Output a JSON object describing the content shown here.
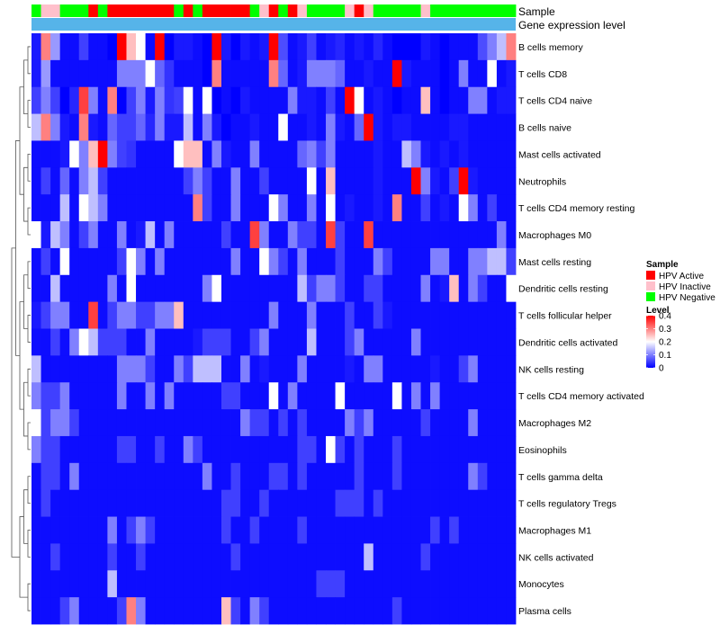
{
  "chart_data": {
    "type": "heatmap",
    "annotation_track_labels": [
      "Sample",
      "Gene expression level"
    ],
    "rows": [
      "B cells memory",
      "T cells CD8",
      "T cells CD4 naive",
      "B cells naive",
      "Mast cells activated",
      "Neutrophils",
      "T cells CD4 memory resting",
      "Macrophages M0",
      "Mast cells resting",
      "Dendritic cells resting",
      "T cells follicular helper",
      "Dendritic cells activated",
      "NK cells resting",
      "T cells CD4 memory activated",
      "Macrophages M2",
      "Eosinophils",
      "T cells gamma delta",
      "T cells regulatory  Tregs",
      "Macrophages M1",
      "NK cells activated",
      "Monocytes",
      "Plasma cells"
    ],
    "sample_groups": [
      "Negative",
      "Inactive",
      "Inactive",
      "Negative",
      "Negative",
      "Negative",
      "Active",
      "Negative",
      "Active",
      "Active",
      "Active",
      "Active",
      "Active",
      "Active",
      "Active",
      "Negative",
      "Active",
      "Negative",
      "Active",
      "Active",
      "Active",
      "Active",
      "Active",
      "Negative",
      "Inactive",
      "Active",
      "Negative",
      "Active",
      "Inactive",
      "Negative",
      "Negative",
      "Negative",
      "Negative",
      "Inactive",
      "Active",
      "Inactive",
      "Negative",
      "Negative",
      "Negative",
      "Negative",
      "Negative",
      "Inactive",
      "Negative",
      "Negative",
      "Negative",
      "Negative",
      "Negative",
      "Negative",
      "Negative",
      "Negative",
      "Negative"
    ],
    "values": [
      [
        0.02,
        0.3,
        0.12,
        0.01,
        0.01,
        0.05,
        0.01,
        0.01,
        0.0,
        0.4,
        0.25,
        0.2,
        0.01,
        0.4,
        0.0,
        0.02,
        0.02,
        0.01,
        0.0,
        0.4,
        0.02,
        0.0,
        0.02,
        0.01,
        0.02,
        0.4,
        0.06,
        0.01,
        0.02,
        0.05,
        0.01,
        0.02,
        0.03,
        0.01,
        0.02,
        0.01,
        0.03,
        0.01,
        0.0,
        0.0,
        0.0,
        0.02,
        0.01,
        0.0,
        0.01,
        0.01,
        0.01,
        0.06,
        0.1,
        0.15,
        0.3
      ],
      [
        0.02,
        0.12,
        0.01,
        0.01,
        0.01,
        0.01,
        0.01,
        0.01,
        0.01,
        0.1,
        0.1,
        0.1,
        0.2,
        0.08,
        0.04,
        0.01,
        0.01,
        0.01,
        0.0,
        0.3,
        0.01,
        0.01,
        0.01,
        0.01,
        0.01,
        0.3,
        0.08,
        0.01,
        0.02,
        0.1,
        0.1,
        0.1,
        0.08,
        0.01,
        0.01,
        0.02,
        0.01,
        0.01,
        0.4,
        0.02,
        0.01,
        0.01,
        0.01,
        0.0,
        0.01,
        0.1,
        0.01,
        0.01,
        0.2,
        0.01,
        0.02
      ],
      [
        0.05,
        0.1,
        0.05,
        0.0,
        0.03,
        0.35,
        0.1,
        0.01,
        0.3,
        0.0,
        0.05,
        0.1,
        0.02,
        0.1,
        0.04,
        0.05,
        0.2,
        0.01,
        0.2,
        0.0,
        0.01,
        0.0,
        0.02,
        0.01,
        0.01,
        0.01,
        0.01,
        0.1,
        0.02,
        0.02,
        0.01,
        0.05,
        0.01,
        0.4,
        0.2,
        0.01,
        0.02,
        0.01,
        0.0,
        0.01,
        0.01,
        0.25,
        0.01,
        0.0,
        0.01,
        0.01,
        0.1,
        0.1,
        0.01,
        0.02,
        0.02
      ],
      [
        0.15,
        0.3,
        0.1,
        0.02,
        0.01,
        0.3,
        0.02,
        0.01,
        0.08,
        0.05,
        0.05,
        0.08,
        0.03,
        0.1,
        0.02,
        0.02,
        0.15,
        0.01,
        0.1,
        0.02,
        0.0,
        0.01,
        0.01,
        0.02,
        0.01,
        0.01,
        0.2,
        0.01,
        0.01,
        0.02,
        0.01,
        0.1,
        0.02,
        0.01,
        0.08,
        0.4,
        0.02,
        0.01,
        0.02,
        0.02,
        0.01,
        0.01,
        0.01,
        0.01,
        0.02,
        0.02,
        0.01,
        0.01,
        0.01,
        0.01,
        0.01
      ],
      [
        0.01,
        0.01,
        0.01,
        0.02,
        0.2,
        0.1,
        0.25,
        0.4,
        0.1,
        0.05,
        0.04,
        0.01,
        0.01,
        0.01,
        0.01,
        0.2,
        0.25,
        0.25,
        0.01,
        0.1,
        0.02,
        0.01,
        0.01,
        0.1,
        0.01,
        0.01,
        0.01,
        0.01,
        0.08,
        0.1,
        0.05,
        0.1,
        0.01,
        0.01,
        0.01,
        0.01,
        0.02,
        0.01,
        0.01,
        0.15,
        0.1,
        0.02,
        0.01,
        0.02,
        0.01,
        0.02,
        0.01,
        0.01,
        0.01,
        0.01,
        0.01
      ],
      [
        0.01,
        0.05,
        0.01,
        0.08,
        0.01,
        0.1,
        0.15,
        0.05,
        0.01,
        0.01,
        0.01,
        0.01,
        0.01,
        0.01,
        0.01,
        0.01,
        0.05,
        0.1,
        0.05,
        0.01,
        0.01,
        0.1,
        0.01,
        0.01,
        0.05,
        0.01,
        0.01,
        0.01,
        0.01,
        0.2,
        0.01,
        0.25,
        0.01,
        0.01,
        0.01,
        0.01,
        0.02,
        0.01,
        0.01,
        0.01,
        0.4,
        0.1,
        0.02,
        0.01,
        0.05,
        0.4,
        0.02,
        0.01,
        0.01,
        0.01,
        0.01
      ],
      [
        0.01,
        0.01,
        0.01,
        0.15,
        0.01,
        0.2,
        0.15,
        0.1,
        0.01,
        0.01,
        0.01,
        0.01,
        0.01,
        0.01,
        0.01,
        0.01,
        0.01,
        0.3,
        0.05,
        0.01,
        0.01,
        0.1,
        0.01,
        0.01,
        0.01,
        0.2,
        0.1,
        0.01,
        0.01,
        0.1,
        0.01,
        0.2,
        0.01,
        0.02,
        0.01,
        0.01,
        0.02,
        0.01,
        0.3,
        0.01,
        0.01,
        0.05,
        0.01,
        0.02,
        0.01,
        0.2,
        0.1,
        0.01,
        0.05,
        0.01,
        0.01
      ],
      [
        0.2,
        0.02,
        0.15,
        0.1,
        0.01,
        0.05,
        0.1,
        0.01,
        0.01,
        0.1,
        0.01,
        0.02,
        0.15,
        0.01,
        0.1,
        0.01,
        0.01,
        0.01,
        0.01,
        0.01,
        0.05,
        0.01,
        0.01,
        0.35,
        0.1,
        0.01,
        0.01,
        0.1,
        0.05,
        0.05,
        0.01,
        0.35,
        0.05,
        0.01,
        0.01,
        0.35,
        0.01,
        0.01,
        0.01,
        0.01,
        0.01,
        0.01,
        0.01,
        0.01,
        0.01,
        0.01,
        0.01,
        0.01,
        0.01,
        0.1,
        0.01
      ],
      [
        0.01,
        0.05,
        0.01,
        0.2,
        0.01,
        0.01,
        0.01,
        0.01,
        0.01,
        0.05,
        0.2,
        0.1,
        0.01,
        0.1,
        0.01,
        0.01,
        0.01,
        0.01,
        0.01,
        0.01,
        0.01,
        0.1,
        0.01,
        0.01,
        0.2,
        0.1,
        0.05,
        0.01,
        0.1,
        0.01,
        0.01,
        0.01,
        0.05,
        0.01,
        0.01,
        0.01,
        0.1,
        0.05,
        0.01,
        0.01,
        0.01,
        0.01,
        0.1,
        0.1,
        0.01,
        0.01,
        0.1,
        0.1,
        0.15,
        0.15,
        0.05
      ],
      [
        0.01,
        0.01,
        0.15,
        0.01,
        0.01,
        0.01,
        0.01,
        0.01,
        0.1,
        0.01,
        0.2,
        0.01,
        0.01,
        0.01,
        0.01,
        0.01,
        0.01,
        0.01,
        0.1,
        0.2,
        0.01,
        0.01,
        0.01,
        0.01,
        0.01,
        0.01,
        0.01,
        0.01,
        0.15,
        0.05,
        0.1,
        0.1,
        0.05,
        0.01,
        0.01,
        0.05,
        0.05,
        0.01,
        0.01,
        0.01,
        0.01,
        0.1,
        0.01,
        0.02,
        0.25,
        0.01,
        0.1,
        0.05,
        0.01,
        0.01,
        0.2
      ],
      [
        0.02,
        0.05,
        0.1,
        0.1,
        0.01,
        0.01,
        0.35,
        0.01,
        0.05,
        0.1,
        0.1,
        0.05,
        0.05,
        0.1,
        0.1,
        0.25,
        0.01,
        0.01,
        0.01,
        0.01,
        0.01,
        0.01,
        0.01,
        0.01,
        0.01,
        0.1,
        0.01,
        0.01,
        0.01,
        0.1,
        0.01,
        0.01,
        0.01,
        0.05,
        0.01,
        0.01,
        0.05,
        0.02,
        0.01,
        0.01,
        0.01,
        0.01,
        0.01,
        0.01,
        0.01,
        0.01,
        0.01,
        0.01,
        0.01,
        0.01,
        0.01
      ],
      [
        0.01,
        0.01,
        0.05,
        0.01,
        0.1,
        0.2,
        0.15,
        0.05,
        0.05,
        0.05,
        0.01,
        0.01,
        0.1,
        0.01,
        0.01,
        0.01,
        0.01,
        0.02,
        0.05,
        0.05,
        0.05,
        0.01,
        0.01,
        0.05,
        0.1,
        0.01,
        0.01,
        0.01,
        0.01,
        0.15,
        0.01,
        0.01,
        0.01,
        0.05,
        0.1,
        0.01,
        0.01,
        0.01,
        0.01,
        0.01,
        0.1,
        0.01,
        0.01,
        0.01,
        0.01,
        0.01,
        0.01,
        0.01,
        0.01,
        0.01,
        0.01
      ],
      [
        0.15,
        0.01,
        0.01,
        0.01,
        0.01,
        0.01,
        0.01,
        0.01,
        0.01,
        0.1,
        0.1,
        0.1,
        0.05,
        0.01,
        0.01,
        0.1,
        0.05,
        0.15,
        0.15,
        0.15,
        0.01,
        0.01,
        0.1,
        0.01,
        0.02,
        0.01,
        0.01,
        0.01,
        0.1,
        0.01,
        0.01,
        0.01,
        0.01,
        0.02,
        0.01,
        0.1,
        0.1,
        0.01,
        0.01,
        0.01,
        0.01,
        0.01,
        0.02,
        0.01,
        0.01,
        0.05,
        0.1,
        0.01,
        0.01,
        0.01,
        0.01
      ],
      [
        0.1,
        0.05,
        0.05,
        0.1,
        0.01,
        0.01,
        0.01,
        0.01,
        0.01,
        0.1,
        0.01,
        0.01,
        0.1,
        0.01,
        0.1,
        0.01,
        0.01,
        0.01,
        0.01,
        0.01,
        0.05,
        0.05,
        0.01,
        0.01,
        0.01,
        0.2,
        0.01,
        0.1,
        0.01,
        0.01,
        0.01,
        0.01,
        0.2,
        0.01,
        0.01,
        0.01,
        0.01,
        0.01,
        0.2,
        0.01,
        0.1,
        0.01,
        0.1,
        0.01,
        0.01,
        0.01,
        0.01,
        0.01,
        0.01,
        0.01,
        0.01
      ],
      [
        0.2,
        0.05,
        0.1,
        0.1,
        0.05,
        0.01,
        0.01,
        0.01,
        0.01,
        0.01,
        0.01,
        0.01,
        0.01,
        0.01,
        0.01,
        0.01,
        0.01,
        0.01,
        0.01,
        0.01,
        0.01,
        0.01,
        0.1,
        0.05,
        0.05,
        0.01,
        0.05,
        0.01,
        0.05,
        0.01,
        0.01,
        0.01,
        0.01,
        0.1,
        0.05,
        0.1,
        0.01,
        0.01,
        0.01,
        0.01,
        0.01,
        0.05,
        0.01,
        0.01,
        0.01,
        0.01,
        0.1,
        0.01,
        0.01,
        0.01,
        0.01
      ],
      [
        0.1,
        0.05,
        0.05,
        0.01,
        0.01,
        0.01,
        0.01,
        0.01,
        0.01,
        0.05,
        0.05,
        0.01,
        0.01,
        0.05,
        0.01,
        0.01,
        0.1,
        0.05,
        0.01,
        0.01,
        0.01,
        0.01,
        0.01,
        0.01,
        0.01,
        0.01,
        0.01,
        0.01,
        0.05,
        0.05,
        0.01,
        0.2,
        0.05,
        0.01,
        0.05,
        0.01,
        0.01,
        0.01,
        0.05,
        0.01,
        0.01,
        0.01,
        0.01,
        0.01,
        0.01,
        0.01,
        0.01,
        0.01,
        0.01,
        0.01,
        0.01
      ],
      [
        0.01,
        0.05,
        0.05,
        0.01,
        0.1,
        0.01,
        0.01,
        0.01,
        0.01,
        0.01,
        0.01,
        0.01,
        0.01,
        0.01,
        0.01,
        0.01,
        0.01,
        0.01,
        0.1,
        0.01,
        0.01,
        0.05,
        0.01,
        0.01,
        0.01,
        0.05,
        0.05,
        0.01,
        0.05,
        0.01,
        0.01,
        0.01,
        0.01,
        0.01,
        0.05,
        0.01,
        0.01,
        0.01,
        0.05,
        0.01,
        0.01,
        0.01,
        0.01,
        0.01,
        0.01,
        0.01,
        0.1,
        0.05,
        0.01,
        0.01,
        0.01
      ],
      [
        0.01,
        0.05,
        0.01,
        0.01,
        0.01,
        0.01,
        0.01,
        0.01,
        0.01,
        0.01,
        0.01,
        0.01,
        0.01,
        0.01,
        0.01,
        0.01,
        0.01,
        0.01,
        0.01,
        0.01,
        0.05,
        0.05,
        0.01,
        0.01,
        0.05,
        0.01,
        0.01,
        0.01,
        0.01,
        0.01,
        0.01,
        0.01,
        0.05,
        0.05,
        0.05,
        0.01,
        0.05,
        0.01,
        0.01,
        0.01,
        0.01,
        0.01,
        0.01,
        0.01,
        0.01,
        0.01,
        0.01,
        0.01,
        0.01,
        0.01,
        0.01
      ],
      [
        0.01,
        0.01,
        0.01,
        0.01,
        0.01,
        0.01,
        0.01,
        0.01,
        0.1,
        0.01,
        0.05,
        0.1,
        0.05,
        0.01,
        0.01,
        0.01,
        0.01,
        0.01,
        0.01,
        0.01,
        0.05,
        0.01,
        0.01,
        0.05,
        0.01,
        0.01,
        0.01,
        0.01,
        0.05,
        0.01,
        0.01,
        0.01,
        0.01,
        0.01,
        0.01,
        0.01,
        0.01,
        0.01,
        0.01,
        0.01,
        0.01,
        0.01,
        0.05,
        0.01,
        0.05,
        0.01,
        0.01,
        0.01,
        0.01,
        0.01,
        0.01
      ],
      [
        0.01,
        0.01,
        0.05,
        0.01,
        0.01,
        0.01,
        0.01,
        0.01,
        0.05,
        0.01,
        0.01,
        0.05,
        0.01,
        0.01,
        0.01,
        0.01,
        0.01,
        0.01,
        0.01,
        0.01,
        0.01,
        0.05,
        0.01,
        0.01,
        0.01,
        0.01,
        0.01,
        0.01,
        0.01,
        0.01,
        0.01,
        0.01,
        0.01,
        0.01,
        0.01,
        0.15,
        0.01,
        0.01,
        0.01,
        0.01,
        0.01,
        0.05,
        0.01,
        0.01,
        0.01,
        0.01,
        0.01,
        0.01,
        0.01,
        0.01,
        0.01
      ],
      [
        0.01,
        0.01,
        0.01,
        0.01,
        0.01,
        0.01,
        0.01,
        0.01,
        0.15,
        0.01,
        0.01,
        0.01,
        0.01,
        0.01,
        0.01,
        0.01,
        0.01,
        0.01,
        0.01,
        0.01,
        0.01,
        0.01,
        0.01,
        0.01,
        0.01,
        0.01,
        0.01,
        0.01,
        0.01,
        0.01,
        0.05,
        0.05,
        0.05,
        0.01,
        0.01,
        0.01,
        0.01,
        0.01,
        0.01,
        0.01,
        0.01,
        0.01,
        0.01,
        0.01,
        0.01,
        0.01,
        0.01,
        0.01,
        0.01,
        0.01,
        0.01
      ],
      [
        0.01,
        0.01,
        0.01,
        0.05,
        0.1,
        0.01,
        0.01,
        0.01,
        0.01,
        0.05,
        0.3,
        0.1,
        0.01,
        0.01,
        0.01,
        0.01,
        0.01,
        0.01,
        0.01,
        0.01,
        0.25,
        0.05,
        0.01,
        0.1,
        0.05,
        0.01,
        0.01,
        0.01,
        0.01,
        0.01,
        0.01,
        0.01,
        0.01,
        0.01,
        0.01,
        0.01,
        0.01,
        0.01,
        0.05,
        0.01,
        0.01,
        0.01,
        0.01,
        0.01,
        0.01,
        0.01,
        0.01,
        0.01,
        0.01,
        0.01,
        0.01
      ]
    ],
    "gene_expression_level_track_color": "#56B4E9",
    "legend": {
      "sample": {
        "title": "Sample",
        "items": [
          {
            "label": "HPV Active",
            "color": "#FF0000"
          },
          {
            "label": "HPV Inactive",
            "color": "#FFC0CB"
          },
          {
            "label": "HPV Negative",
            "color": "#00FF00"
          }
        ]
      },
      "level": {
        "title": "Level",
        "ticks": [
          "0.4",
          "0.3",
          "0.2",
          "0.1",
          "0"
        ],
        "tick_values": [
          0.4,
          0.3,
          0.2,
          0.1,
          0
        ],
        "color_low": "#0000FF",
        "color_mid": "#FFFFFF",
        "color_high": "#FF0000",
        "range": [
          0,
          0.4
        ]
      }
    },
    "legend_placement": "right"
  }
}
